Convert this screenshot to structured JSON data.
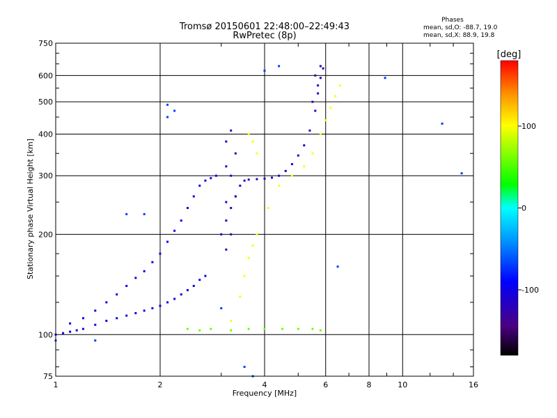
{
  "chart_data": {
    "type": "scatter",
    "title": "Tromsø 20150601 22:48:00–22:49:43",
    "subtitle": "RwPretec (8p)",
    "xlabel": "Frequency [MHz]",
    "ylabel": "Stationary phase Virtual Height [km]",
    "x_scale": "log",
    "y_scale": "log",
    "xlim": [
      1,
      16
    ],
    "ylim": [
      75,
      750
    ],
    "x_ticks": [
      1,
      2,
      4,
      6,
      8,
      10,
      16
    ],
    "x_tick_labels": [
      "1",
      "2",
      "4",
      "6",
      "8",
      "10",
      "16"
    ],
    "y_ticks": [
      75,
      100,
      200,
      300,
      400,
      500,
      600,
      750
    ],
    "y_tick_labels": [
      "75",
      "100",
      "200",
      "300",
      "400",
      "500",
      "600",
      "750"
    ],
    "grid": true,
    "phases_box": {
      "title": "Phases",
      "line1": "mean, sd,O: -88.7, 19.0",
      "line2": "mean, sd,X: 88.9, 19.8"
    },
    "colorbar": {
      "unit": "[deg]",
      "tick_labels": [
        "100",
        "0",
        "-100"
      ],
      "tick_values": [
        100,
        0,
        -100
      ],
      "range": [
        -180,
        180
      ]
    },
    "point_groups": [
      {
        "name": "O-trace low band",
        "phase": -100,
        "points": [
          [
            1.0,
            100
          ],
          [
            1.05,
            101
          ],
          [
            1.1,
            102
          ],
          [
            1.15,
            103
          ],
          [
            1.2,
            104
          ],
          [
            1.3,
            107
          ],
          [
            1.4,
            110
          ],
          [
            1.5,
            112
          ],
          [
            1.6,
            114
          ],
          [
            1.7,
            116
          ],
          [
            1.8,
            118
          ],
          [
            1.9,
            120
          ],
          [
            2.0,
            122
          ],
          [
            2.1,
            125
          ],
          [
            2.2,
            128
          ],
          [
            2.3,
            132
          ],
          [
            2.4,
            136
          ],
          [
            2.5,
            140
          ],
          [
            2.6,
            146
          ],
          [
            2.7,
            150
          ]
        ]
      },
      {
        "name": "O-trace upper band",
        "phase": -100,
        "points": [
          [
            1.1,
            108
          ],
          [
            1.2,
            112
          ],
          [
            1.3,
            118
          ],
          [
            1.4,
            125
          ],
          [
            1.5,
            132
          ],
          [
            1.6,
            140
          ],
          [
            1.7,
            148
          ],
          [
            1.8,
            155
          ],
          [
            1.9,
            165
          ],
          [
            2.0,
            175
          ],
          [
            2.1,
            190
          ],
          [
            2.2,
            205
          ],
          [
            2.3,
            220
          ],
          [
            2.4,
            240
          ],
          [
            2.5,
            260
          ],
          [
            2.6,
            280
          ],
          [
            2.7,
            290
          ],
          [
            2.8,
            295
          ],
          [
            2.9,
            300
          ]
        ]
      },
      {
        "name": "F-layer O-trace",
        "phase": -115,
        "points": [
          [
            3.0,
            200
          ],
          [
            3.1,
            220
          ],
          [
            3.2,
            240
          ],
          [
            3.3,
            260
          ],
          [
            3.4,
            280
          ],
          [
            3.5,
            290
          ],
          [
            3.6,
            292
          ],
          [
            3.8,
            293
          ],
          [
            4.0,
            294
          ],
          [
            4.2,
            296
          ],
          [
            4.4,
            300
          ],
          [
            4.6,
            310
          ],
          [
            4.8,
            325
          ],
          [
            5.0,
            345
          ],
          [
            5.2,
            370
          ],
          [
            5.4,
            410
          ],
          [
            5.6,
            470
          ],
          [
            5.7,
            530
          ],
          [
            5.8,
            590
          ],
          [
            5.9,
            630
          ]
        ]
      },
      {
        "name": "Spread F columns",
        "phase": -120,
        "points": [
          [
            3.1,
            180
          ],
          [
            3.1,
            250
          ],
          [
            3.1,
            320
          ],
          [
            3.1,
            380
          ],
          [
            3.2,
            200
          ],
          [
            3.2,
            300
          ],
          [
            3.3,
            350
          ],
          [
            3.3,
            260
          ],
          [
            3.2,
            410
          ],
          [
            5.7,
            560
          ],
          [
            5.6,
            600
          ],
          [
            5.8,
            640
          ],
          [
            5.5,
            500
          ]
        ]
      },
      {
        "name": "F-layer X-trace",
        "phase": 100,
        "points": [
          [
            3.2,
            110
          ],
          [
            3.4,
            130
          ],
          [
            3.5,
            150
          ],
          [
            3.6,
            170
          ],
          [
            3.7,
            185
          ],
          [
            3.8,
            200
          ],
          [
            4.1,
            240
          ],
          [
            4.4,
            280
          ],
          [
            4.8,
            300
          ],
          [
            5.2,
            320
          ],
          [
            5.5,
            350
          ],
          [
            5.8,
            400
          ],
          [
            6.0,
            440
          ],
          [
            6.2,
            480
          ],
          [
            6.4,
            520
          ],
          [
            6.6,
            560
          ],
          [
            3.7,
            380
          ],
          [
            3.8,
            350
          ],
          [
            3.6,
            400
          ]
        ]
      },
      {
        "name": "Sporadic E echoes",
        "phase": 60,
        "points": [
          [
            2.4,
            104
          ],
          [
            2.6,
            103
          ],
          [
            2.8,
            104
          ],
          [
            3.2,
            103
          ],
          [
            3.6,
            104
          ],
          [
            4.0,
            104
          ],
          [
            4.5,
            104
          ],
          [
            5.0,
            104
          ],
          [
            5.5,
            104
          ],
          [
            5.8,
            103
          ]
        ]
      },
      {
        "name": "Scattered stragglers",
        "phase": -70,
        "points": [
          [
            1.6,
            230
          ],
          [
            1.8,
            230
          ],
          [
            2.1,
            450
          ],
          [
            2.1,
            490
          ],
          [
            2.2,
            470
          ],
          [
            3.0,
            120
          ],
          [
            4.0,
            620
          ],
          [
            4.4,
            640
          ],
          [
            6.5,
            160
          ],
          [
            8.9,
            590
          ],
          [
            13.0,
            430
          ],
          [
            14.8,
            305
          ],
          [
            3.5,
            80
          ],
          [
            3.7,
            75
          ],
          [
            1.3,
            96
          ],
          [
            1.0,
            96
          ]
        ]
      }
    ]
  }
}
